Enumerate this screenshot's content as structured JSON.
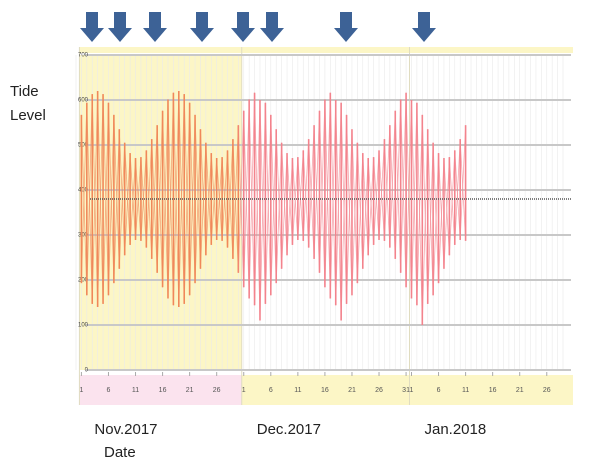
{
  "chart_data": {
    "type": "tide",
    "y_label": "Tide Level",
    "x_label": "Date",
    "months": [
      {
        "label": "Nov.2017",
        "start": 1
      },
      {
        "label": "Dec.2017",
        "start": 31
      },
      {
        "label": "Jan.2018",
        "start": 62
      }
    ],
    "colors": [
      "#f0885a",
      "#f3838d"
    ],
    "x": [
      1,
      2,
      3,
      4,
      5,
      6,
      7,
      8,
      9,
      10,
      11,
      12,
      13,
      14,
      15,
      16,
      17,
      18,
      19,
      20,
      21,
      22,
      23,
      24,
      25,
      26,
      27,
      28,
      29,
      30,
      31,
      32,
      33,
      34,
      35,
      36,
      37,
      38,
      39,
      40,
      41,
      42,
      43,
      44,
      45,
      46,
      47,
      48,
      49,
      50,
      51,
      52,
      53,
      54,
      55,
      56,
      57,
      58,
      59,
      60,
      61,
      62,
      63,
      64,
      65,
      66,
      67,
      68,
      69,
      70,
      71,
      72
    ],
    "high": [
      567,
      594,
      613,
      620,
      613,
      594,
      567,
      535,
      505,
      482,
      471,
      473,
      488,
      513,
      544,
      576,
      601,
      616,
      620,
      613,
      594,
      567,
      535,
      505,
      482,
      471,
      473,
      488,
      513,
      544,
      576,
      601,
      616,
      600,
      594,
      567,
      535,
      505,
      482,
      471,
      473,
      488,
      513,
      544,
      576,
      601,
      616,
      600,
      594,
      567,
      535,
      505,
      482,
      471,
      473,
      488,
      513,
      544,
      576,
      601,
      616,
      600,
      594,
      567,
      535,
      505,
      482,
      471,
      473,
      488,
      513,
      544
    ],
    "low": [
      193,
      166,
      147,
      140,
      147,
      166,
      193,
      225,
      255,
      278,
      289,
      287,
      272,
      247,
      216,
      184,
      159,
      144,
      140,
      147,
      166,
      193,
      225,
      255,
      278,
      289,
      287,
      272,
      247,
      216,
      184,
      159,
      144,
      110,
      147,
      166,
      193,
      225,
      255,
      278,
      289,
      287,
      272,
      247,
      216,
      184,
      159,
      144,
      110,
      147,
      166,
      193,
      225,
      255,
      278,
      289,
      287,
      272,
      247,
      216,
      184,
      159,
      144,
      100,
      147,
      166,
      193,
      225,
      255,
      278,
      289,
      287
    ],
    "mean_line": 380,
    "xlim": [
      0,
      90
    ],
    "ylim": [
      0,
      700
    ],
    "yticks": [
      0,
      100,
      200,
      300,
      400,
      500,
      600,
      700
    ],
    "xticks": [
      1,
      6,
      11,
      16,
      21,
      26,
      {
        "value": 31,
        "label": "1"
      },
      {
        "value": 36,
        "label": "6"
      },
      {
        "value": 41,
        "label": "11"
      },
      {
        "value": 46,
        "label": "16"
      },
      {
        "value": 51,
        "label": "21"
      },
      {
        "value": 56,
        "label": "26"
      },
      {
        "value": 61,
        "label": "31"
      },
      {
        "value": 62,
        "label": "1"
      },
      {
        "value": 67,
        "label": "6"
      },
      {
        "value": 72,
        "label": "11"
      },
      {
        "value": 77,
        "label": "16"
      },
      {
        "value": 82,
        "label": "21"
      },
      {
        "value": 87,
        "label": "26"
      }
    ],
    "grid": true
  }
}
